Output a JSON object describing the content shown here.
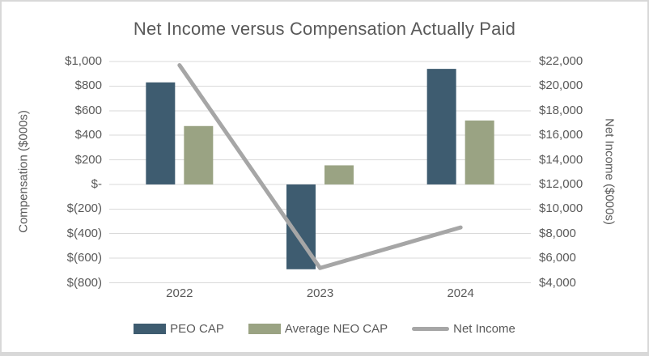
{
  "frame": {
    "background": "#FFFFFF",
    "border_color": "#D8D8D8",
    "text_color": "#595959"
  },
  "chart_data": {
    "type": "combo-bar-line",
    "title": "Net Income versus Compensation Actually Paid",
    "categories": [
      "2022",
      "2023",
      "2024"
    ],
    "series": [
      {
        "name": "PEO CAP",
        "type": "bar",
        "axis": "left",
        "color": "#3E5C70",
        "values": [
          830,
          -690,
          940
        ]
      },
      {
        "name": "Average NEO CAP",
        "type": "bar",
        "axis": "left",
        "color": "#9AA383",
        "values": [
          475,
          155,
          520
        ]
      },
      {
        "name": "Net Income",
        "type": "line",
        "axis": "right",
        "color": "#A6A6A6",
        "values": [
          21700,
          5200,
          8500
        ]
      }
    ],
    "left_axis": {
      "label": "Compensation ($000s)",
      "min": -800,
      "max": 1000,
      "step": 200,
      "tick_labels": [
        "$1,000",
        "$800",
        "$600",
        "$400",
        "$200",
        "$-",
        "$(200)",
        "$(400)",
        "$(600)",
        "$(800)"
      ]
    },
    "right_axis": {
      "label": "Net Income ($000s)",
      "min": 4000,
      "max": 22000,
      "step": 2000,
      "tick_labels": [
        "$22,000",
        "$20,000",
        "$18,000",
        "$16,000",
        "$14,000",
        "$12,000",
        "$10,000",
        "$8,000",
        "$6,000",
        "$4,000"
      ]
    },
    "grid": true,
    "gridline_color": "#D9D9D9",
    "legend_position": "bottom"
  }
}
